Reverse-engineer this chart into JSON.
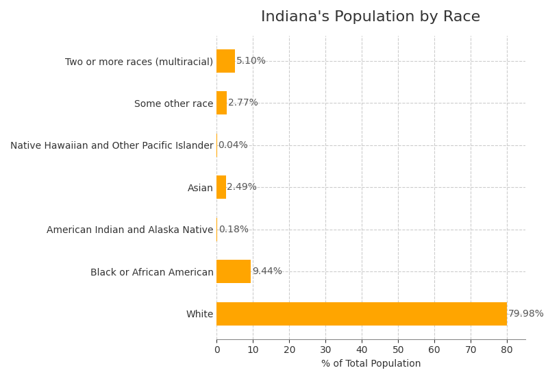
{
  "title": "Indiana's Population by Race",
  "xlabel": "% of Total Population",
  "categories": [
    "White",
    "Black or African American",
    "American Indian and Alaska Native",
    "Asian",
    "Native Hawaiian and Other Pacific Islander",
    "Some other race",
    "Two or more races (multiracial)"
  ],
  "values": [
    79.98,
    9.44,
    0.18,
    2.49,
    0.04,
    2.77,
    5.1
  ],
  "labels": [
    "79.98%",
    "9.44%",
    "0.18%",
    "2.49%",
    "0.04%",
    "2.77%",
    "5.10%"
  ],
  "bar_color": "#FFA500",
  "background_color": "#FFFFFF",
  "grid_color": "#CCCCCC",
  "title_fontsize": 16,
  "label_fontsize": 10,
  "tick_fontsize": 10,
  "xlim": [
    0,
    85
  ],
  "bar_height": 0.55
}
